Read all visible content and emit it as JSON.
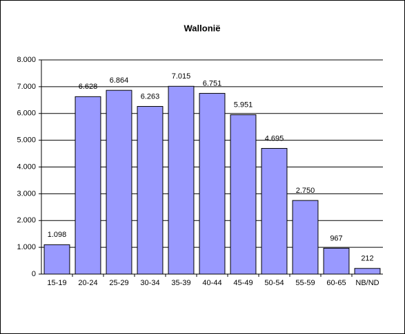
{
  "chart_data": {
    "type": "bar",
    "title": "Wallonië",
    "categories": [
      "15-19",
      "20-24",
      "25-29",
      "30-34",
      "35-39",
      "40-44",
      "45-49",
      "50-54",
      "55-59",
      "60-65",
      "NB/ND"
    ],
    "values": [
      1098,
      6628,
      6864,
      6263,
      7015,
      6751,
      5951,
      4695,
      2750,
      967,
      212
    ],
    "value_labels": [
      "1.098",
      "6.628",
      "6.864",
      "6.263",
      "7.015",
      "6.751",
      "5.951",
      "4.695",
      "2.750",
      "967",
      "212"
    ],
    "color": "#9999ff",
    "ylim": [
      0,
      8000
    ],
    "yticks": [
      0,
      {
        "value": 1000,
        "label": "1.000"
      },
      {
        "value": 2000,
        "label": "2.000"
      },
      {
        "value": 3000,
        "label": "3.000"
      },
      {
        "value": 4000,
        "label": "4.000"
      },
      {
        "value": 5000,
        "label": "5.000"
      },
      {
        "value": 6000,
        "label": "6.000"
      },
      {
        "value": 7000,
        "label": "7.000"
      },
      {
        "value": 8000,
        "label": "8.000"
      }
    ],
    "grid": true
  }
}
